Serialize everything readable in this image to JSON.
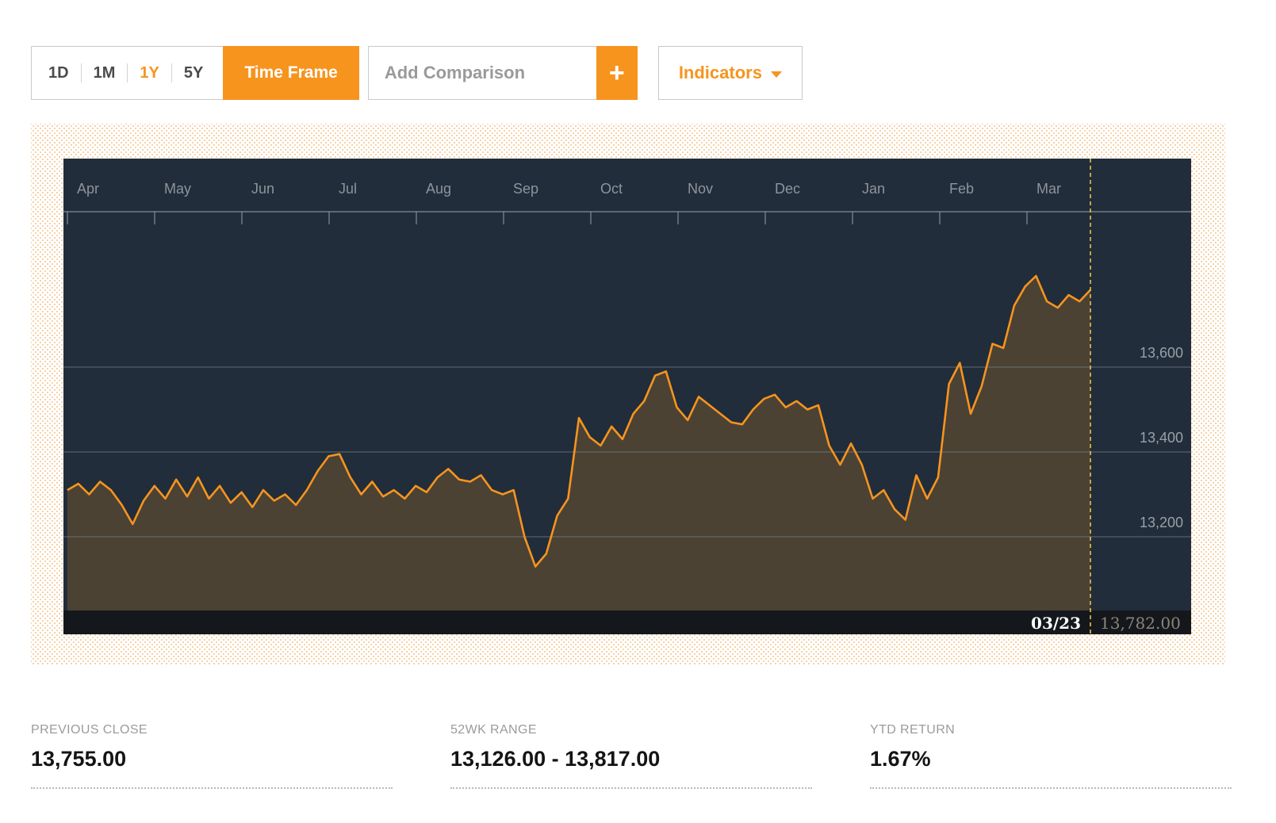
{
  "toolbar": {
    "timeframes": [
      {
        "label": "1D",
        "active": false
      },
      {
        "label": "1M",
        "active": false
      },
      {
        "label": "1Y",
        "active": true
      },
      {
        "label": "5Y",
        "active": false
      }
    ],
    "timeframe_button": "Time Frame",
    "add_comparison_placeholder": "Add Comparison",
    "plus_label": "+",
    "indicators_label": "Indicators"
  },
  "stats": [
    {
      "label": "PREVIOUS CLOSE",
      "value": "13,755.00"
    },
    {
      "label": "52WK RANGE",
      "value": "13,126.00 - 13,817.00"
    },
    {
      "label": "YTD RETURN",
      "value": "1.67%"
    }
  ],
  "chart_data": {
    "type": "area",
    "title": "",
    "xlabel": "",
    "ylabel": "",
    "x_axis": {
      "months": [
        "Apr",
        "May",
        "Jun",
        "Jul",
        "Aug",
        "Sep",
        "Oct",
        "Nov",
        "Dec",
        "Jan",
        "Feb",
        "Mar"
      ]
    },
    "y_ticks": [
      13600,
      13400,
      13200
    ],
    "y_tick_labels": [
      "13,600",
      "13,400",
      "13,200"
    ],
    "ylim": [
      13030,
      13975
    ],
    "grid": true,
    "legend": "none",
    "series": [
      {
        "name": "price",
        "values": [
          13310,
          13325,
          13300,
          13330,
          13310,
          13275,
          13230,
          13285,
          13320,
          13290,
          13335,
          13295,
          13340,
          13290,
          13320,
          13280,
          13305,
          13270,
          13310,
          13285,
          13300,
          13275,
          13310,
          13355,
          13390,
          13395,
          13340,
          13300,
          13330,
          13295,
          13310,
          13290,
          13320,
          13305,
          13340,
          13360,
          13335,
          13330,
          13345,
          13310,
          13300,
          13310,
          13200,
          13130,
          13160,
          13250,
          13290,
          13480,
          13435,
          13415,
          13460,
          13430,
          13490,
          13520,
          13580,
          13590,
          13505,
          13475,
          13530,
          13510,
          13490,
          13470,
          13465,
          13500,
          13525,
          13535,
          13505,
          13520,
          13500,
          13510,
          13415,
          13370,
          13420,
          13370,
          13290,
          13310,
          13265,
          13240,
          13345,
          13290,
          13340,
          13560,
          13610,
          13490,
          13555,
          13655,
          13645,
          13745,
          13790,
          13815,
          13755,
          13740,
          13770,
          13755,
          13782
        ]
      }
    ],
    "cursor": {
      "date": "03/23",
      "value_label": "13,782.00",
      "value": 13782
    },
    "colors": {
      "line": "#f7941e",
      "fill": "rgba(247,148,30,0.2)",
      "bg": "#212d3a",
      "grid": "#76808a",
      "axis": "#858d95",
      "label": "#8d949c",
      "cursor": "#e8bf4a",
      "strip_bg": "#14181d",
      "strip_date": "#ffffff",
      "strip_value": "#8d8478"
    }
  }
}
